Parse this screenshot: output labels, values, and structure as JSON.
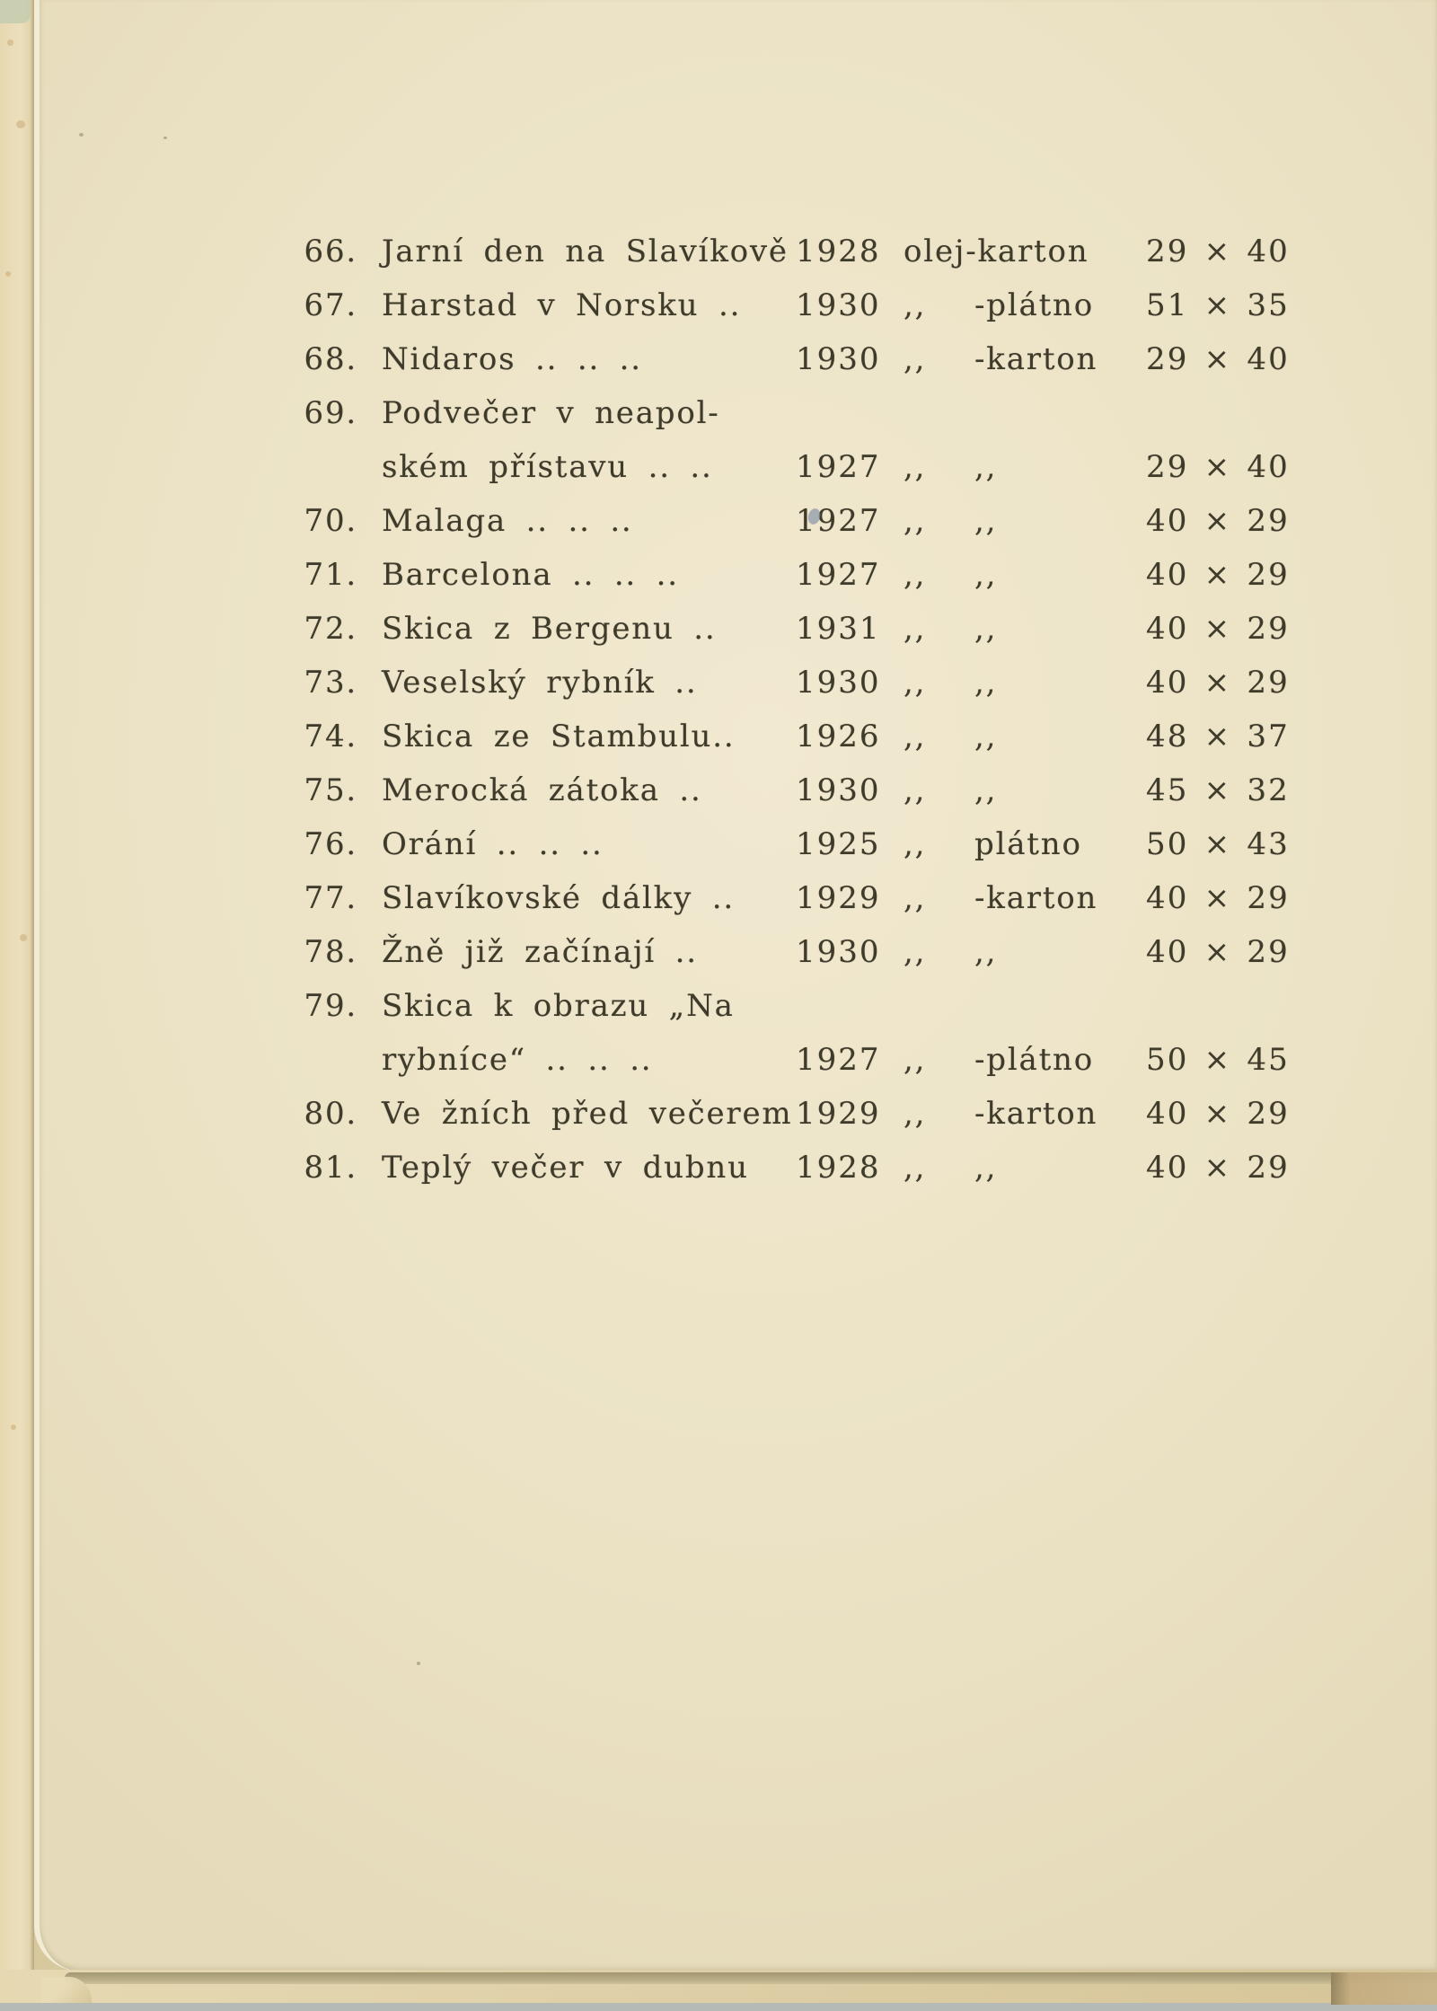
{
  "colors": {
    "paper": "#ece3c6",
    "ink": "#3f3b2b",
    "page_edge": "#b3a87e",
    "ink_speck": "#8795a8"
  },
  "catalog": {
    "lines": [
      {
        "num": "66.",
        "title": "Jarní den na Slavíkově",
        "year": "1928",
        "medium_left": "olej-karton",
        "medium_right": "",
        "dims": "29 × 40"
      },
      {
        "num": "67.",
        "title": "Harstad v Norsku ..",
        "year": "1930",
        "medium_left": ",,",
        "medium_right": "-plátno",
        "dims": "51 × 35"
      },
      {
        "num": "68.",
        "title": "Nidaros .. .. ..",
        "year": "1930",
        "medium_left": ",,",
        "medium_right": "-karton",
        "dims": "29 × 40"
      },
      {
        "num": "69.",
        "title": "Podvečer v neapol-",
        "year": "",
        "medium_left": "",
        "medium_right": "",
        "dims": ""
      },
      {
        "num": "",
        "title": "ském přístavu .. ..",
        "year": "1927",
        "medium_left": ",,",
        "medium_right": ",,",
        "dims": "29 × 40"
      },
      {
        "num": "70.",
        "title": "Malaga .. .. ..",
        "year": "1927",
        "medium_left": ",,",
        "medium_right": ",,",
        "dims": "40 × 29",
        "ink_speck": true
      },
      {
        "num": "71.",
        "title": "Barcelona .. .. ..",
        "year": "1927",
        "medium_left": ",,",
        "medium_right": ",,",
        "dims": "40 × 29"
      },
      {
        "num": "72.",
        "title": "Skica z Bergenu ..",
        "year": "1931",
        "medium_left": ",,",
        "medium_right": ",,",
        "dims": "40 × 29"
      },
      {
        "num": "73.",
        "title": "Veselský rybník ..",
        "year": "1930",
        "medium_left": ",,",
        "medium_right": ",,",
        "dims": "40 × 29"
      },
      {
        "num": "74.",
        "title": "Skica ze Stambulu..",
        "year": "1926",
        "medium_left": ",,",
        "medium_right": ",,",
        "dims": "48 × 37"
      },
      {
        "num": "75.",
        "title": "Merocká zátoka ..",
        "year": "1930",
        "medium_left": ",,",
        "medium_right": ",,",
        "dims": "45 × 32"
      },
      {
        "num": "76.",
        "title": "Orání .. .. ..",
        "year": "1925",
        "medium_left": ",,",
        "medium_right": "plátno",
        "dims": "50 × 43"
      },
      {
        "num": "77.",
        "title": "Slavíkovské dálky ..",
        "year": "1929",
        "medium_left": ",,",
        "medium_right": "-karton",
        "dims": "40 × 29"
      },
      {
        "num": "78.",
        "title": "Žně již začínají ..",
        "year": "1930",
        "medium_left": ",,",
        "medium_right": ",,",
        "dims": "40 × 29"
      },
      {
        "num": "79.",
        "title": "Skica k obrazu „Na",
        "year": "",
        "medium_left": "",
        "medium_right": "",
        "dims": ""
      },
      {
        "num": "",
        "title": "rybníce“ .. .. ..",
        "year": "1927",
        "medium_left": ",,",
        "medium_right": "-plátno",
        "dims": "50 × 45"
      },
      {
        "num": "80.",
        "title": "Ve žních před večerem",
        "year": "1929",
        "medium_left": ",,",
        "medium_right": "-karton",
        "dims": "40 × 29"
      },
      {
        "num": "81.",
        "title": "Teplý večer v dubnu",
        "year": "1928",
        "medium_left": ",,",
        "medium_right": ",,",
        "dims": "40 × 29"
      }
    ]
  }
}
